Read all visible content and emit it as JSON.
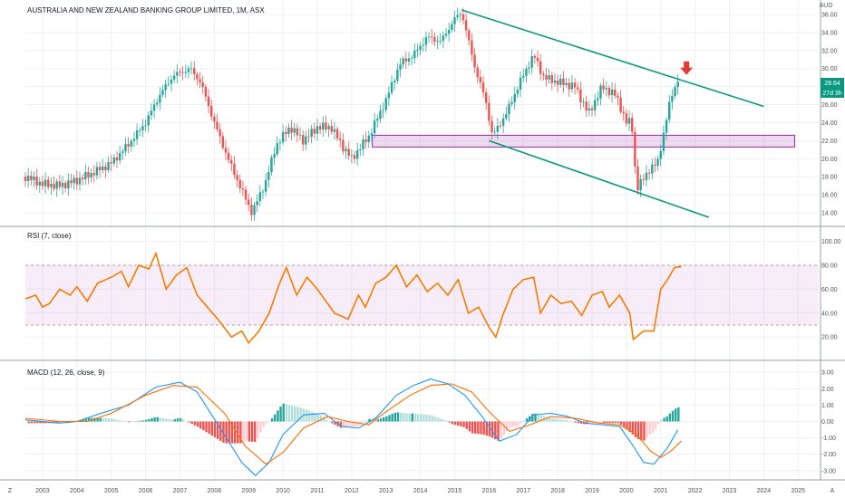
{
  "chart_data": [
    {
      "type": "candlestick",
      "title": "AUSTRALIA AND NEW ZEALAND BANKING GROUP LIMITED, 1M, ASX",
      "currency": "AUD",
      "last_price": "28.64",
      "countdown": "27d 3h",
      "y_ticks": [
        "36.00",
        "34.00",
        "32.00",
        "30.00",
        "28.00",
        "26.00",
        "24.00",
        "22.00",
        "20.00",
        "18.00",
        "16.00",
        "14.00"
      ],
      "ylim": [
        13.0,
        36.8
      ],
      "x_ticks": [
        "2003",
        "2004",
        "2005",
        "2006",
        "2007",
        "2008",
        "2009",
        "2010",
        "2011",
        "2012",
        "2013",
        "2014",
        "2015",
        "2016",
        "2017",
        "2018",
        "2019",
        "2020",
        "2021",
        "2022",
        "2023",
        "2024",
        "2025"
      ],
      "close_series": [
        {
          "t": 2002.5,
          "v": 18.0
        },
        {
          "t": 2003.0,
          "v": 17.2
        },
        {
          "t": 2003.5,
          "v": 17.0
        },
        {
          "t": 2004.0,
          "v": 17.6
        },
        {
          "t": 2004.5,
          "v": 18.5
        },
        {
          "t": 2005.0,
          "v": 19.5
        },
        {
          "t": 2005.5,
          "v": 21.6
        },
        {
          "t": 2006.0,
          "v": 24.0
        },
        {
          "t": 2006.4,
          "v": 27.0
        },
        {
          "t": 2006.8,
          "v": 29.2
        },
        {
          "t": 2007.3,
          "v": 30.0
        },
        {
          "t": 2007.6,
          "v": 28.5
        },
        {
          "t": 2008.0,
          "v": 24.0
        },
        {
          "t": 2008.4,
          "v": 20.0
        },
        {
          "t": 2008.8,
          "v": 16.5
        },
        {
          "t": 2009.1,
          "v": 14.0
        },
        {
          "t": 2009.5,
          "v": 17.5
        },
        {
          "t": 2009.8,
          "v": 21.5
        },
        {
          "t": 2010.2,
          "v": 23.5
        },
        {
          "t": 2010.6,
          "v": 22.0
        },
        {
          "t": 2011.0,
          "v": 23.5
        },
        {
          "t": 2011.4,
          "v": 23.5
        },
        {
          "t": 2011.8,
          "v": 21.0
        },
        {
          "t": 2012.0,
          "v": 20.0
        },
        {
          "t": 2012.5,
          "v": 22.5
        },
        {
          "t": 2013.0,
          "v": 26.5
        },
        {
          "t": 2013.4,
          "v": 30.5
        },
        {
          "t": 2013.8,
          "v": 31.5
        },
        {
          "t": 2014.2,
          "v": 33.5
        },
        {
          "t": 2014.6,
          "v": 33.0
        },
        {
          "t": 2015.0,
          "v": 35.5
        },
        {
          "t": 2015.2,
          "v": 36.3
        },
        {
          "t": 2015.6,
          "v": 30.0
        },
        {
          "t": 2015.9,
          "v": 26.5
        },
        {
          "t": 2016.1,
          "v": 22.5
        },
        {
          "t": 2016.5,
          "v": 25.0
        },
        {
          "t": 2016.9,
          "v": 28.5
        },
        {
          "t": 2017.3,
          "v": 31.5
        },
        {
          "t": 2017.6,
          "v": 29.0
        },
        {
          "t": 2018.0,
          "v": 28.5
        },
        {
          "t": 2018.5,
          "v": 28.0
        },
        {
          "t": 2018.9,
          "v": 25.0
        },
        {
          "t": 2019.3,
          "v": 28.0
        },
        {
          "t": 2019.7,
          "v": 27.0
        },
        {
          "t": 2020.0,
          "v": 24.0
        },
        {
          "t": 2020.15,
          "v": 24.2
        },
        {
          "t": 2020.3,
          "v": 16.5
        },
        {
          "t": 2020.6,
          "v": 18.5
        },
        {
          "t": 2020.9,
          "v": 19.5
        },
        {
          "t": 2021.1,
          "v": 23.0
        },
        {
          "t": 2021.3,
          "v": 27.0
        },
        {
          "t": 2021.5,
          "v": 28.64
        }
      ],
      "trendlines": [
        {
          "from": {
            "t": 2015.2,
            "v": 36.5
          },
          "to": {
            "t": 2024.0,
            "v": 25.8
          }
        },
        {
          "from": {
            "t": 2016.0,
            "v": 22.0
          },
          "to": {
            "t": 2022.4,
            "v": 13.5
          }
        }
      ],
      "support_zone": {
        "from_t": 2012.6,
        "to_t": 2024.9,
        "low": 21.3,
        "high": 22.6
      },
      "arrow_marker": {
        "t": 2021.75,
        "v": 29.4,
        "direction": "down"
      }
    },
    {
      "type": "line",
      "label": "RSI (7, close)",
      "y_ticks": [
        "100.00",
        "80.00",
        "60.00",
        "40.00",
        "20.00"
      ],
      "ylim": [
        5,
        105
      ],
      "band": [
        30,
        80
      ],
      "series": [
        {
          "t": 2002.5,
          "v": 52
        },
        {
          "t": 2002.8,
          "v": 55
        },
        {
          "t": 2003.0,
          "v": 45
        },
        {
          "t": 2003.2,
          "v": 48
        },
        {
          "t": 2003.5,
          "v": 60
        },
        {
          "t": 2003.8,
          "v": 55
        },
        {
          "t": 2004.0,
          "v": 62
        },
        {
          "t": 2004.3,
          "v": 50
        },
        {
          "t": 2004.6,
          "v": 65
        },
        {
          "t": 2005.0,
          "v": 70
        },
        {
          "t": 2005.3,
          "v": 75
        },
        {
          "t": 2005.5,
          "v": 62
        },
        {
          "t": 2005.8,
          "v": 80
        },
        {
          "t": 2006.1,
          "v": 77
        },
        {
          "t": 2006.3,
          "v": 90
        },
        {
          "t": 2006.6,
          "v": 60
        },
        {
          "t": 2006.9,
          "v": 72
        },
        {
          "t": 2007.2,
          "v": 78
        },
        {
          "t": 2007.5,
          "v": 55
        },
        {
          "t": 2007.8,
          "v": 45
        },
        {
          "t": 2008.1,
          "v": 35
        },
        {
          "t": 2008.5,
          "v": 20
        },
        {
          "t": 2008.8,
          "v": 25
        },
        {
          "t": 2009.0,
          "v": 15
        },
        {
          "t": 2009.3,
          "v": 25
        },
        {
          "t": 2009.6,
          "v": 40
        },
        {
          "t": 2009.9,
          "v": 65
        },
        {
          "t": 2010.1,
          "v": 78
        },
        {
          "t": 2010.4,
          "v": 55
        },
        {
          "t": 2010.7,
          "v": 70
        },
        {
          "t": 2011.0,
          "v": 60
        },
        {
          "t": 2011.2,
          "v": 52
        },
        {
          "t": 2011.5,
          "v": 40
        },
        {
          "t": 2011.9,
          "v": 35
        },
        {
          "t": 2012.2,
          "v": 55
        },
        {
          "t": 2012.4,
          "v": 45
        },
        {
          "t": 2012.7,
          "v": 65
        },
        {
          "t": 2013.0,
          "v": 70
        },
        {
          "t": 2013.3,
          "v": 80
        },
        {
          "t": 2013.6,
          "v": 62
        },
        {
          "t": 2013.9,
          "v": 72
        },
        {
          "t": 2014.2,
          "v": 58
        },
        {
          "t": 2014.5,
          "v": 65
        },
        {
          "t": 2014.8,
          "v": 55
        },
        {
          "t": 2015.1,
          "v": 68
        },
        {
          "t": 2015.4,
          "v": 40
        },
        {
          "t": 2015.7,
          "v": 45
        },
        {
          "t": 2016.0,
          "v": 28
        },
        {
          "t": 2016.2,
          "v": 20
        },
        {
          "t": 2016.4,
          "v": 38
        },
        {
          "t": 2016.7,
          "v": 60
        },
        {
          "t": 2017.0,
          "v": 68
        },
        {
          "t": 2017.3,
          "v": 70
        },
        {
          "t": 2017.5,
          "v": 40
        },
        {
          "t": 2017.8,
          "v": 55
        },
        {
          "t": 2018.1,
          "v": 48
        },
        {
          "t": 2018.4,
          "v": 50
        },
        {
          "t": 2018.7,
          "v": 38
        },
        {
          "t": 2019.0,
          "v": 55
        },
        {
          "t": 2019.3,
          "v": 58
        },
        {
          "t": 2019.5,
          "v": 45
        },
        {
          "t": 2019.8,
          "v": 55
        },
        {
          "t": 2020.1,
          "v": 40
        },
        {
          "t": 2020.2,
          "v": 18
        },
        {
          "t": 2020.5,
          "v": 25
        },
        {
          "t": 2020.8,
          "v": 25
        },
        {
          "t": 2021.0,
          "v": 60
        },
        {
          "t": 2021.2,
          "v": 68
        },
        {
          "t": 2021.4,
          "v": 78
        },
        {
          "t": 2021.6,
          "v": 79
        }
      ]
    },
    {
      "type": "bar+line",
      "label": "MACD (12, 26, close, 9)",
      "y_ticks": [
        "3.00",
        "2.00",
        "1.00",
        "0.00",
        "-1.00",
        "-2.00",
        "-3.00"
      ],
      "ylim": [
        -3.4,
        3.4
      ],
      "macd_line": [
        {
          "t": 2002.5,
          "v": 0.1
        },
        {
          "t": 2003.5,
          "v": -0.1
        },
        {
          "t": 2004.0,
          "v": 0.0
        },
        {
          "t": 2004.7,
          "v": 0.5
        },
        {
          "t": 2005.5,
          "v": 1.0
        },
        {
          "t": 2006.3,
          "v": 2.1
        },
        {
          "t": 2007.0,
          "v": 2.4
        },
        {
          "t": 2007.5,
          "v": 1.8
        },
        {
          "t": 2008.2,
          "v": -0.5
        },
        {
          "t": 2008.8,
          "v": -2.5
        },
        {
          "t": 2009.2,
          "v": -3.3
        },
        {
          "t": 2009.6,
          "v": -2.5
        },
        {
          "t": 2010.0,
          "v": -0.8
        },
        {
          "t": 2010.6,
          "v": 0.4
        },
        {
          "t": 2011.2,
          "v": 0.5
        },
        {
          "t": 2011.7,
          "v": -0.3
        },
        {
          "t": 2012.2,
          "v": -0.4
        },
        {
          "t": 2012.7,
          "v": 0.2
        },
        {
          "t": 2013.3,
          "v": 1.6
        },
        {
          "t": 2013.8,
          "v": 2.2
        },
        {
          "t": 2014.3,
          "v": 2.6
        },
        {
          "t": 2014.8,
          "v": 2.3
        },
        {
          "t": 2015.3,
          "v": 1.6
        },
        {
          "t": 2015.8,
          "v": 0.3
        },
        {
          "t": 2016.3,
          "v": -1.2
        },
        {
          "t": 2016.8,
          "v": -0.8
        },
        {
          "t": 2017.3,
          "v": 0.4
        },
        {
          "t": 2017.8,
          "v": 0.5
        },
        {
          "t": 2018.3,
          "v": 0.3
        },
        {
          "t": 2018.8,
          "v": -0.1
        },
        {
          "t": 2019.3,
          "v": -0.2
        },
        {
          "t": 2019.8,
          "v": -0.3
        },
        {
          "t": 2020.2,
          "v": -1.5
        },
        {
          "t": 2020.5,
          "v": -2.5
        },
        {
          "t": 2020.8,
          "v": -2.6
        },
        {
          "t": 2021.2,
          "v": -1.6
        },
        {
          "t": 2021.5,
          "v": -0.5
        }
      ],
      "signal_line": [
        {
          "t": 2002.5,
          "v": 0.2
        },
        {
          "t": 2003.5,
          "v": 0.0
        },
        {
          "t": 2004.3,
          "v": 0.0
        },
        {
          "t": 2005.0,
          "v": 0.5
        },
        {
          "t": 2006.0,
          "v": 1.6
        },
        {
          "t": 2006.8,
          "v": 2.2
        },
        {
          "t": 2007.5,
          "v": 2.1
        },
        {
          "t": 2008.3,
          "v": 0.5
        },
        {
          "t": 2008.9,
          "v": -1.5
        },
        {
          "t": 2009.5,
          "v": -2.6
        },
        {
          "t": 2010.0,
          "v": -1.9
        },
        {
          "t": 2010.6,
          "v": -0.4
        },
        {
          "t": 2011.3,
          "v": 0.3
        },
        {
          "t": 2011.9,
          "v": 0.0
        },
        {
          "t": 2012.5,
          "v": -0.2
        },
        {
          "t": 2013.0,
          "v": 0.6
        },
        {
          "t": 2013.7,
          "v": 1.6
        },
        {
          "t": 2014.3,
          "v": 2.2
        },
        {
          "t": 2014.9,
          "v": 2.3
        },
        {
          "t": 2015.5,
          "v": 1.8
        },
        {
          "t": 2016.0,
          "v": 0.6
        },
        {
          "t": 2016.6,
          "v": -0.6
        },
        {
          "t": 2017.2,
          "v": -0.2
        },
        {
          "t": 2017.8,
          "v": 0.3
        },
        {
          "t": 2018.5,
          "v": 0.2
        },
        {
          "t": 2019.2,
          "v": -0.1
        },
        {
          "t": 2019.8,
          "v": -0.2
        },
        {
          "t": 2020.3,
          "v": -0.8
        },
        {
          "t": 2020.7,
          "v": -1.8
        },
        {
          "t": 2021.0,
          "v": -2.2
        },
        {
          "t": 2021.3,
          "v": -1.8
        },
        {
          "t": 2021.6,
          "v": -1.2
        }
      ]
    }
  ],
  "footer": {
    "left_marker": "Z",
    "right_marker": "A"
  }
}
